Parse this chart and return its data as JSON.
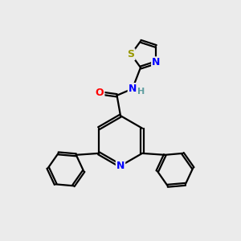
{
  "background_color": "#ebebeb",
  "bond_color": "#000000",
  "atom_colors": {
    "N": "#0000ff",
    "O": "#ff0000",
    "S": "#999900",
    "H": "#5f9ea0",
    "C": "#000000"
  },
  "figsize": [
    3.0,
    3.0
  ],
  "dpi": 100,
  "lw": 1.6,
  "off": 0.055
}
